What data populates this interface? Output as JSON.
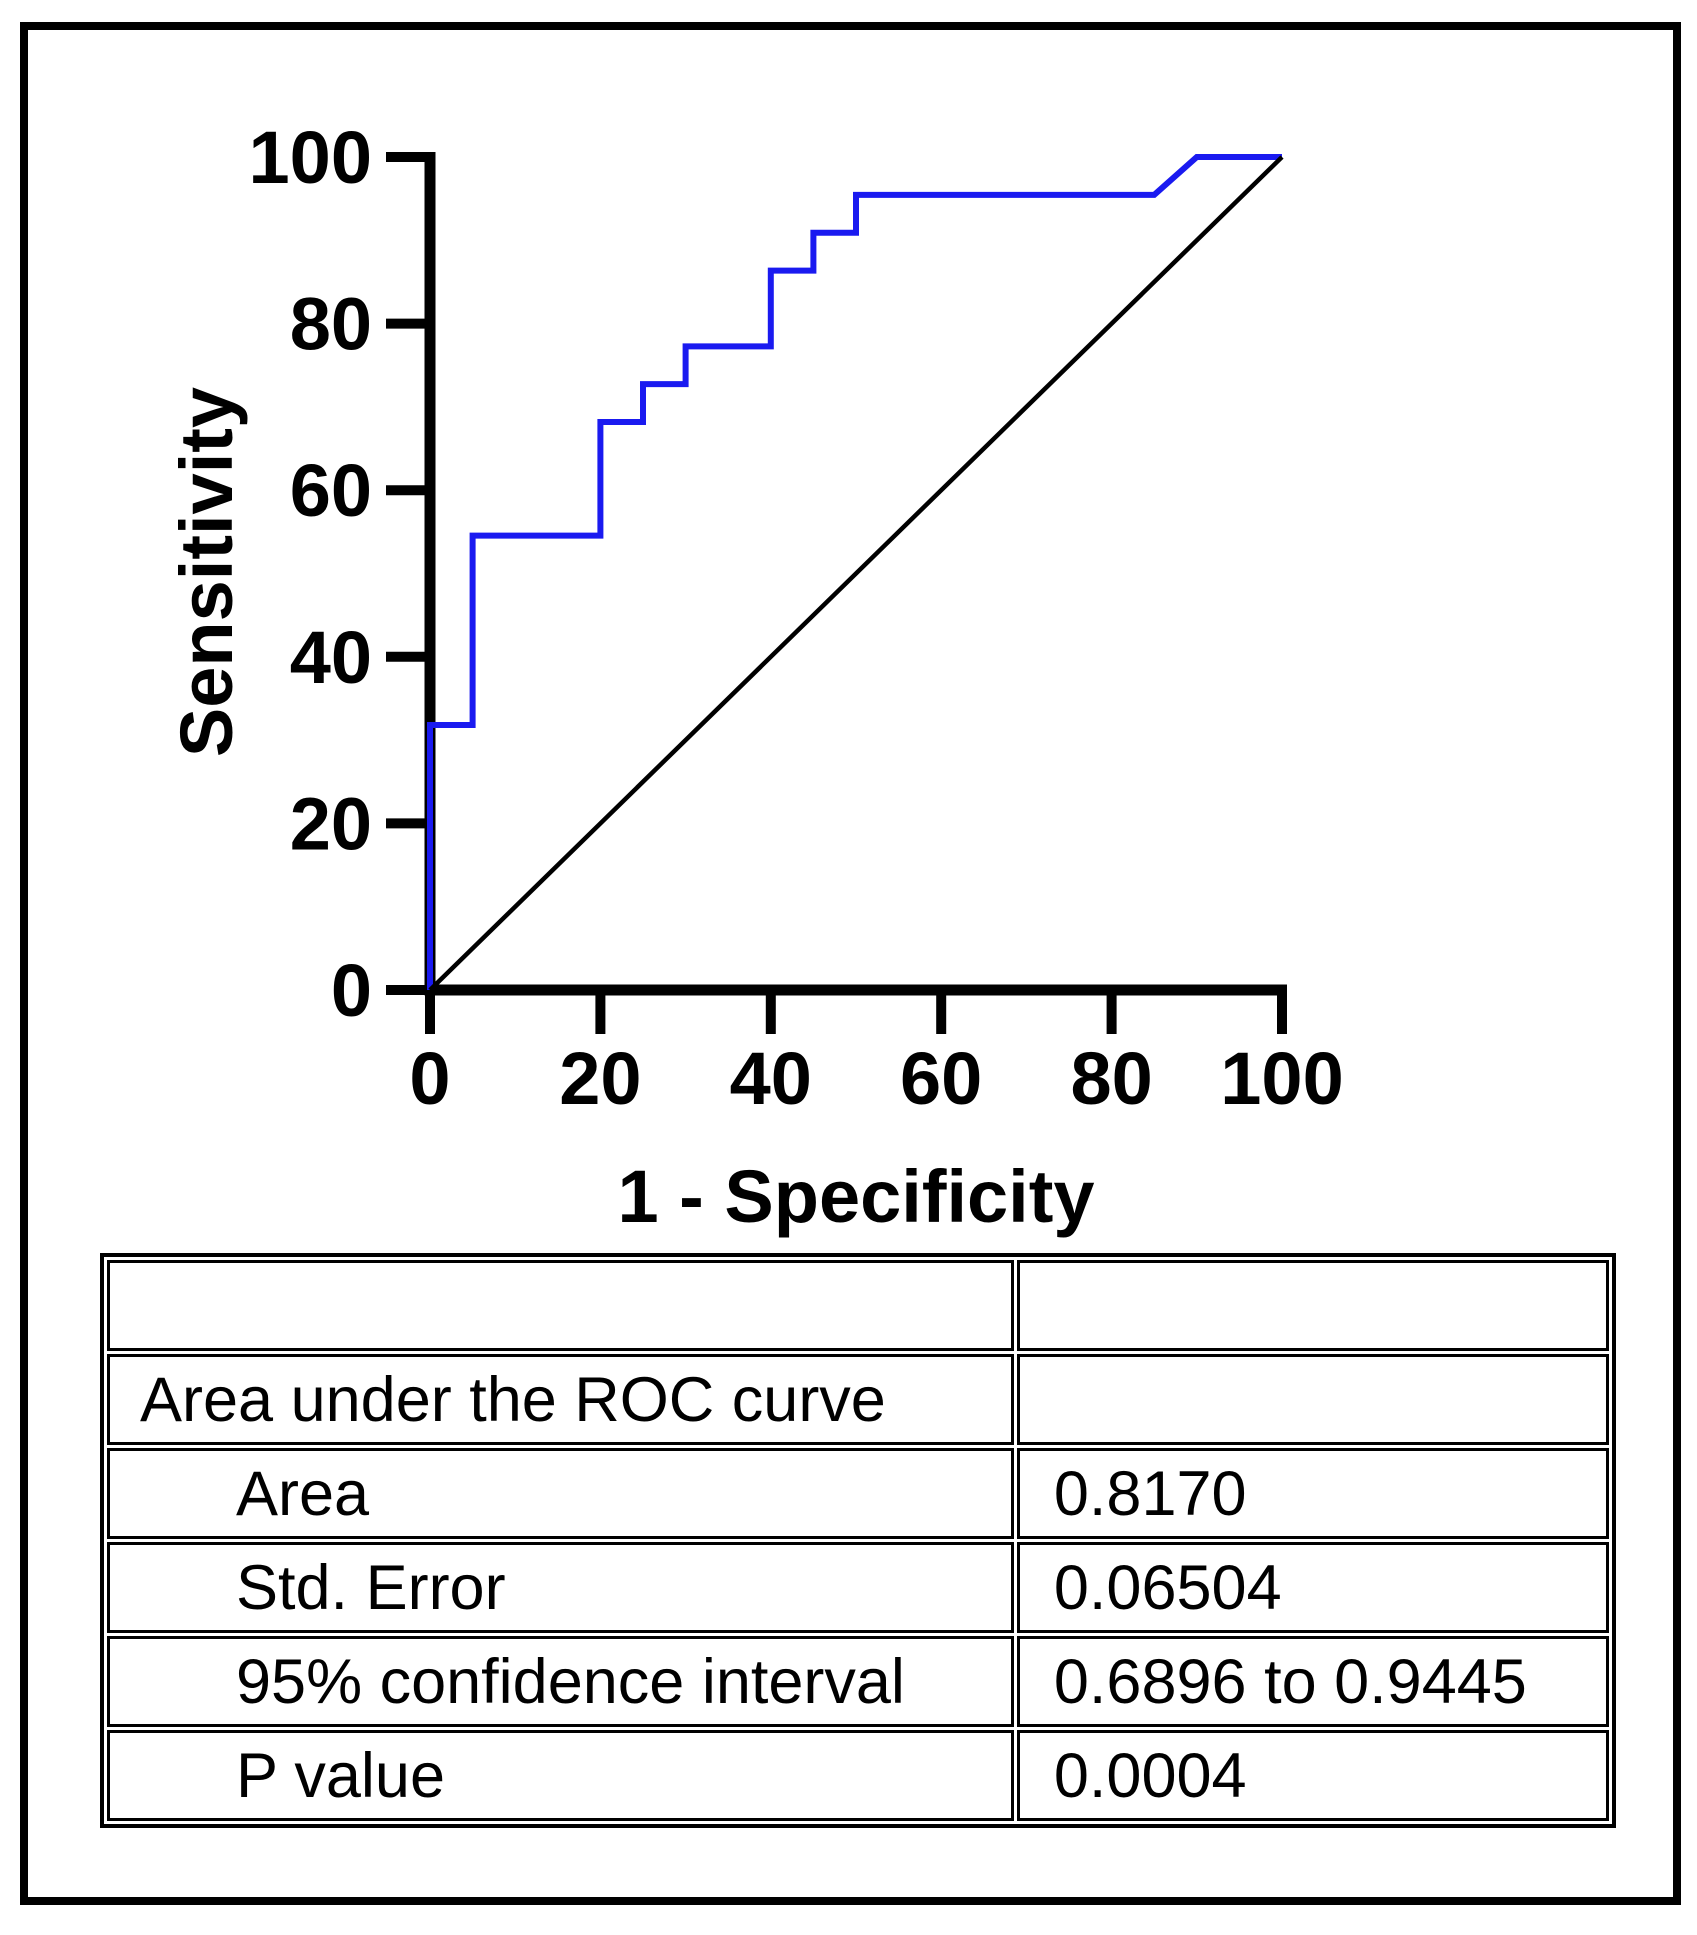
{
  "chart_data": {
    "type": "line",
    "title": "",
    "xlabel": "1 - Specificity",
    "ylabel": "Sensitivity",
    "xlim": [
      0,
      100
    ],
    "ylim": [
      0,
      100
    ],
    "x_ticks": [
      0,
      20,
      40,
      60,
      80,
      100
    ],
    "y_ticks": [
      0,
      20,
      40,
      60,
      80,
      100
    ],
    "grid": false,
    "legend": "none",
    "series": [
      {
        "name": "ROC curve",
        "color": "#1a1af0",
        "width": 6,
        "points": [
          [
            0,
            0
          ],
          [
            0,
            31.82
          ],
          [
            5,
            31.82
          ],
          [
            5,
            54.55
          ],
          [
            20,
            54.55
          ],
          [
            20,
            68.18
          ],
          [
            25,
            68.18
          ],
          [
            25,
            72.73
          ],
          [
            30,
            72.73
          ],
          [
            30,
            77.27
          ],
          [
            40,
            77.27
          ],
          [
            40,
            86.36
          ],
          [
            45,
            86.36
          ],
          [
            45,
            90.91
          ],
          [
            50,
            90.91
          ],
          [
            50,
            95.45
          ],
          [
            85,
            95.45
          ],
          [
            90,
            100
          ],
          [
            100,
            100
          ]
        ]
      },
      {
        "name": "identity reference line",
        "color": "#000000",
        "width": 4.5,
        "points": [
          [
            0,
            0
          ],
          [
            100,
            100
          ]
        ]
      }
    ]
  },
  "table": {
    "rows": [
      {
        "label": "",
        "value": ""
      },
      {
        "label": "Area under the ROC curve",
        "value": ""
      },
      {
        "label": "Area",
        "value": "0.8170"
      },
      {
        "label": "Std. Error",
        "value": "0.06504"
      },
      {
        "label": "95% confidence interval",
        "value": "0.6896 to 0.9445"
      },
      {
        "label": "P value",
        "value": "0.0004"
      }
    ]
  },
  "colors": {
    "axis": "#000000",
    "curve": "#1a1af0",
    "reference": "#000000",
    "background": "#ffffff"
  }
}
